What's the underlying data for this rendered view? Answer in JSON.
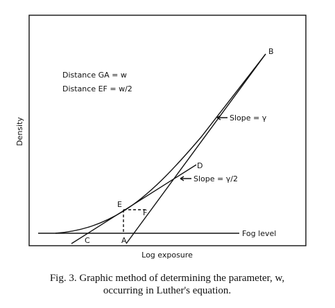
{
  "figure": {
    "y_label": "Density",
    "x_label": "Log exposure",
    "annotations": {
      "distance_ga": "Distance GA = w",
      "distance_ef": "Distance EF = w/2",
      "slope_b": "Slope = γ",
      "slope_d": "Slope = γ/2",
      "fog": "Fog level"
    },
    "points": {
      "a": "A",
      "b": "B",
      "c": "C",
      "d": "D",
      "e": "E",
      "f": "F"
    }
  },
  "caption": {
    "line1": "Fig. 3. Graphic method of determining the parameter, w,",
    "line2": "occurring in Luther's equation."
  }
}
